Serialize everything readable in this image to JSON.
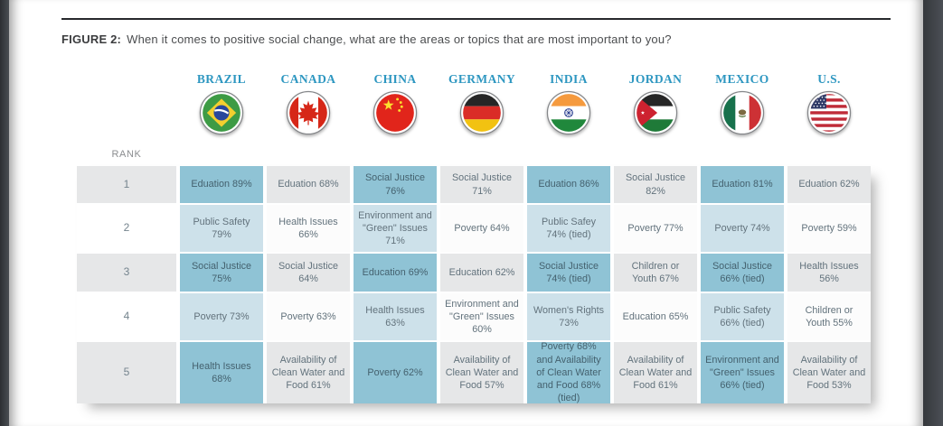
{
  "figure": {
    "label": "FIGURE 2:",
    "title": "When it comes to positive social change, what are the areas or topics that are most important to you?"
  },
  "table": {
    "rank_label": "RANK",
    "countries": [
      {
        "name": "BRAZIL",
        "flag_icon": "brazil-flag-icon",
        "highlighted": true
      },
      {
        "name": "CANADA",
        "flag_icon": "canada-flag-icon",
        "highlighted": false
      },
      {
        "name": "CHINA",
        "flag_icon": "china-flag-icon",
        "highlighted": true
      },
      {
        "name": "GERMANY",
        "flag_icon": "germany-flag-icon",
        "highlighted": false
      },
      {
        "name": "INDIA",
        "flag_icon": "india-flag-icon",
        "highlighted": true
      },
      {
        "name": "JORDAN",
        "flag_icon": "jordan-flag-icon",
        "highlighted": false
      },
      {
        "name": "MEXICO",
        "flag_icon": "mexico-flag-icon",
        "highlighted": true
      },
      {
        "name": "U.S.",
        "flag_icon": "us-flag-icon",
        "highlighted": false
      }
    ],
    "rows": [
      {
        "rank": "1",
        "cells": [
          "Eduation 89%",
          "Eduation 68%",
          "Social Justice 76%",
          "Social Justice 71%",
          "Eduation 86%",
          "Social Justice 82%",
          "Eduation 81%",
          "Eduation 62%"
        ]
      },
      {
        "rank": "2",
        "cells": [
          "Public Safety 79%",
          "Health Issues 66%",
          "Environment and \"Green\" Issues 71%",
          "Poverty 64%",
          "Public Safey 74% (tied)",
          "Poverty 77%",
          "Poverty 74%",
          "Poverty 59%"
        ]
      },
      {
        "rank": "3",
        "cells": [
          "Social Justice 75%",
          "Social Justice 64%",
          "Education 69%",
          "Education 62%",
          "Social Justice 74% (tied)",
          "Children or Youth 67%",
          "Social Justice 66% (tied)",
          "Health Issues 56%"
        ]
      },
      {
        "rank": "4",
        "cells": [
          "Poverty 73%",
          "Poverty 63%",
          "Health Issues 63%",
          "Environment and \"Green\" Issues 60%",
          "Women's Rights 73%",
          "Education 65%",
          "Public Safety 66% (tied)",
          "Children or Youth 55%"
        ]
      },
      {
        "rank": "5",
        "cells": [
          "Health Issues 68%",
          "Availability of Clean Water and Food 61%",
          "Poverty 62%",
          "Availability of Clean Water and Food 57%",
          "Poverty 68% and Availability of Clean Water and Food 68% (tied)",
          "Availability of Clean Water and Food 61%",
          "Environment and \"Green\" Issues 66% (tied)",
          "Availability of Clean Water and Food 53%"
        ]
      }
    ]
  },
  "colors": {
    "highlight_dark": "#8fc3d5",
    "highlight_light": "#cde1ea",
    "row_gray": "#e6e7e8",
    "country_header_blue": "#2e97c1",
    "rule_dark": "#27292c"
  }
}
